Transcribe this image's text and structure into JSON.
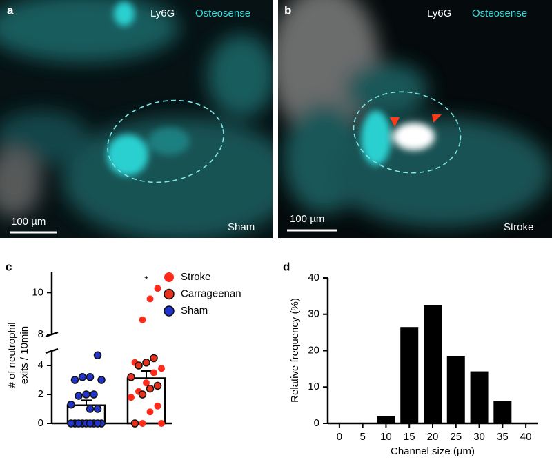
{
  "images": [
    {
      "label": "a",
      "stain1": "Ly6G",
      "stain2": "Osteosense",
      "scale": "100 µm",
      "condition": "Sham"
    },
    {
      "label": "b",
      "stain1": "Ly6G",
      "stain2": "Osteosense",
      "scale": "100 µm",
      "condition": "Stroke"
    }
  ],
  "chart_data": [
    {
      "type": "scatter-bar",
      "label": "c",
      "ylabel": [
        "# of neutrophil",
        "exits / 10min"
      ],
      "ylim": [
        0,
        11
      ],
      "ybreak": [
        5,
        8
      ],
      "yticks": [
        0,
        2,
        4,
        8,
        10
      ],
      "bars": {
        "values": [
          1.25,
          3.12
        ],
        "errors": [
          0.35,
          0.5
        ]
      },
      "annotation": {
        "text": "*",
        "group": 1
      },
      "series": [
        {
          "name": "Stroke",
          "color": "#ff2a1a",
          "edge": "none",
          "group": 1,
          "values": [
            10.2,
            9.7,
            8.7,
            4.2,
            3.8,
            3.5,
            2.8,
            2.2,
            1.8,
            1.2,
            0.8,
            0,
            0,
            0
          ]
        },
        {
          "name": "Carrageenan",
          "color": "#e8321e",
          "edge": "#111111",
          "group": 1,
          "values": [
            4.5,
            4.2,
            4.0,
            3.2,
            2.6,
            2.4,
            2.0,
            0
          ]
        },
        {
          "name": "Sham",
          "color": "#2233cc",
          "edge": "#111111",
          "group": 0,
          "values": [
            4.7,
            3.2,
            3.2,
            3.0,
            3.0,
            2.0,
            2.0,
            1.9,
            1.3,
            1.0,
            1.0,
            0,
            0,
            0,
            0,
            0,
            0,
            0,
            0,
            0
          ]
        }
      ]
    },
    {
      "type": "bar",
      "label": "d",
      "xlabel": "Channel size (µm)",
      "ylabel": "Relative frequency (%)",
      "x": [
        0,
        5,
        10,
        15,
        20,
        25,
        30,
        35,
        40
      ],
      "values": [
        0,
        0,
        2,
        26.5,
        32.5,
        18.5,
        14.3,
        6.2,
        0
      ],
      "color": "#000000",
      "xlim": [
        -2.5,
        42.5
      ],
      "xticks": [
        0,
        5,
        10,
        15,
        20,
        25,
        30,
        35,
        40
      ],
      "ylim": [
        0,
        40
      ],
      "yticks": [
        0,
        10,
        20,
        30,
        40
      ]
    }
  ]
}
